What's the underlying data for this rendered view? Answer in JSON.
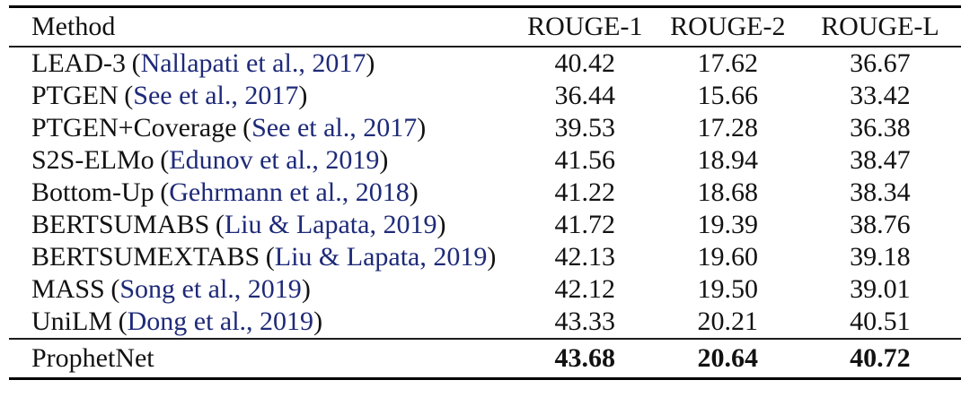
{
  "colors": {
    "citation_blue": "#1e2a78",
    "text": "#121212",
    "rule": "#000000",
    "background": "#ffffff"
  },
  "table": {
    "headers": [
      "Method",
      "ROUGE-1",
      "ROUGE-2",
      "ROUGE-L"
    ],
    "punctuation": {
      "open_paren": "(",
      "close_paren": ")"
    },
    "rows": [
      {
        "method": "LEAD-3",
        "citation": "Nallapati et al., 2017",
        "rouge1": "40.42",
        "rouge2": "17.62",
        "rougeL": "36.67"
      },
      {
        "method": "PTGEN",
        "citation": "See et al., 2017",
        "rouge1": "36.44",
        "rouge2": "15.66",
        "rougeL": "33.42"
      },
      {
        "method": "PTGEN+Coverage",
        "citation": "See et al., 2017",
        "rouge1": "39.53",
        "rouge2": "17.28",
        "rougeL": "36.38"
      },
      {
        "method": "S2S-ELMo",
        "citation": "Edunov et al., 2019",
        "rouge1": "41.56",
        "rouge2": "18.94",
        "rougeL": "38.47"
      },
      {
        "method": "Bottom-Up",
        "citation": "Gehrmann et al., 2018",
        "rouge1": "41.22",
        "rouge2": "18.68",
        "rougeL": "38.34"
      },
      {
        "method": "BERTSUMABS",
        "citation": "Liu & Lapata, 2019",
        "rouge1": "41.72",
        "rouge2": "19.39",
        "rougeL": "38.76"
      },
      {
        "method": "BERTSUMEXTABS",
        "citation": "Liu & Lapata, 2019",
        "rouge1": "42.13",
        "rouge2": "19.60",
        "rougeL": "39.18"
      },
      {
        "method": "MASS",
        "citation": "Song et al., 2019",
        "rouge1": "42.12",
        "rouge2": "19.50",
        "rougeL": "39.01"
      },
      {
        "method": "UniLM",
        "citation": "Dong et al., 2019",
        "rouge1": "43.33",
        "rouge2": "20.21",
        "rougeL": "40.51"
      }
    ],
    "highlight_row": {
      "method": "ProphetNet",
      "rouge1": "43.68",
      "rouge2": "20.64",
      "rougeL": "40.72"
    }
  }
}
